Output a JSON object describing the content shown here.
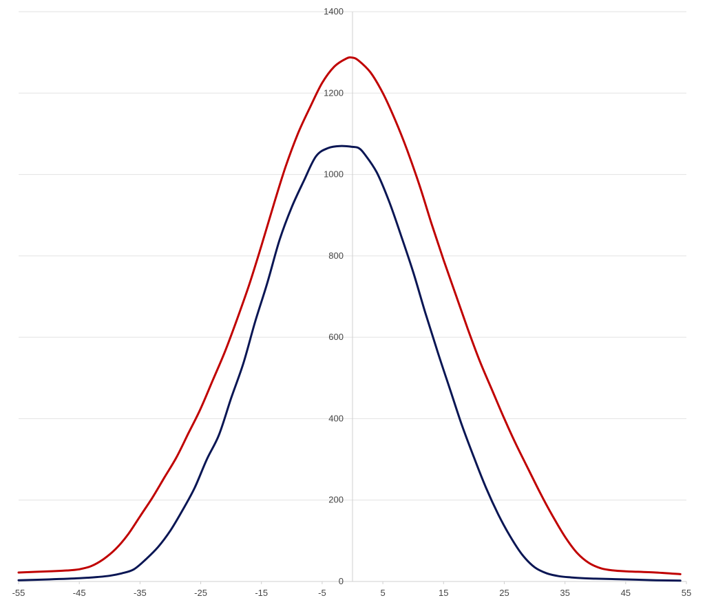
{
  "chart_data": {
    "type": "line",
    "title": "",
    "xlabel": "",
    "ylabel": "",
    "xlim": [
      -55,
      55
    ],
    "ylim": [
      0,
      1400
    ],
    "x_ticks": [
      "-55",
      "-45",
      "-35",
      "-25",
      "-15",
      "-5",
      "5",
      "15",
      "25",
      "35",
      "45",
      "55"
    ],
    "y_ticks": [
      "0",
      "200",
      "400",
      "600",
      "800",
      "1000",
      "1200",
      "1400"
    ],
    "grid": true,
    "legend": "none",
    "series": [
      {
        "color": "#c00000",
        "x": [
          -55,
          -50,
          -47,
          -45,
          -43,
          -41,
          -39,
          -37,
          -35,
          -33,
          -31,
          -29,
          -27,
          -25,
          -23,
          -21,
          -19,
          -17,
          -15,
          -13,
          -11,
          -9,
          -7,
          -5,
          -3,
          -1,
          0,
          1,
          3,
          5,
          7,
          9,
          11,
          13,
          15,
          17,
          19,
          21,
          23,
          25,
          27,
          29,
          31,
          33,
          35,
          37,
          39,
          41,
          43,
          45,
          50,
          54
        ],
        "y": [
          22,
          25,
          27,
          30,
          38,
          55,
          80,
          115,
          160,
          205,
          255,
          305,
          365,
          425,
          495,
          565,
          645,
          730,
          825,
          925,
          1020,
          1100,
          1165,
          1225,
          1265,
          1285,
          1287,
          1280,
          1250,
          1200,
          1135,
          1060,
          975,
          880,
          790,
          705,
          620,
          540,
          470,
          400,
          335,
          275,
          215,
          160,
          110,
          70,
          45,
          32,
          27,
          25,
          22,
          18
        ]
      },
      {
        "color": "#0a1654",
        "x": [
          -55,
          -50,
          -45,
          -42,
          -40,
          -38,
          -36,
          -34,
          -32,
          -30,
          -28,
          -26,
          -24,
          -22,
          -20,
          -18,
          -16,
          -14,
          -12,
          -10,
          -8,
          -6,
          -4,
          -2,
          0,
          1,
          2,
          4,
          6,
          8,
          10,
          12,
          14,
          16,
          18,
          20,
          22,
          24,
          26,
          28,
          30,
          32,
          34,
          36,
          38,
          40,
          45,
          50,
          54
        ],
        "y": [
          3,
          5,
          8,
          11,
          14,
          20,
          30,
          55,
          85,
          125,
          175,
          230,
          300,
          360,
          450,
          535,
          640,
          735,
          840,
          920,
          985,
          1045,
          1065,
          1070,
          1068,
          1065,
          1050,
          1005,
          935,
          850,
          760,
          660,
          565,
          475,
          385,
          305,
          230,
          165,
          110,
          65,
          35,
          20,
          13,
          10,
          8,
          7,
          5,
          3,
          2
        ]
      }
    ]
  }
}
